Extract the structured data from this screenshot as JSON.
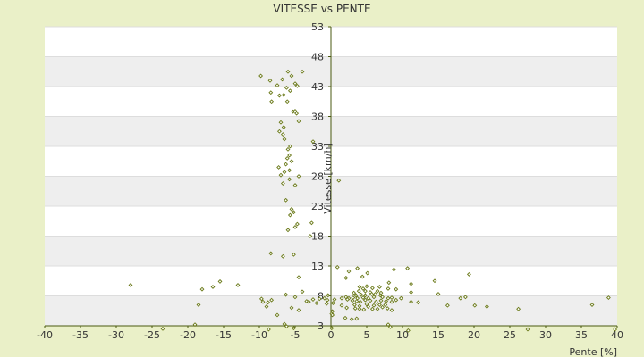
{
  "chart_data": {
    "type": "scatter",
    "title": "VITESSE vs PENTE",
    "xlabel": "Pente [%]",
    "ylabel": "Vitesse [km/h]",
    "xlim": [
      -40,
      40
    ],
    "ylim": [
      3,
      53
    ],
    "x_ticks": [
      "-40",
      "-35",
      "-30",
      "-25",
      "-20",
      "-15",
      "-10",
      "-5",
      "0",
      "5",
      "10",
      "15",
      "20",
      "25",
      "30",
      "35",
      "40"
    ],
    "y_ticks": [
      "3",
      "8",
      "13",
      "18",
      "23",
      "28",
      "33",
      "38",
      "43",
      "48",
      "53"
    ],
    "grid": true,
    "alternating_bands": true,
    "colors": {
      "page_background": "#eaf0c8",
      "plot_background": "#ffffff",
      "band": "#eeeeee",
      "axis": "#4a5a10",
      "marker": "#6b7a1a"
    },
    "marker": "diamond",
    "series": [
      {
        "points": [
          [
            -9.8,
            44.8
          ],
          [
            -6,
            45.5
          ],
          [
            -4,
            45.5
          ],
          [
            -8.5,
            44
          ],
          [
            -6.8,
            44.2
          ],
          [
            -5.5,
            44.8
          ],
          [
            -7.5,
            43.2
          ],
          [
            -5,
            43.5
          ],
          [
            -4.7,
            43.1
          ],
          [
            -6.2,
            42.8
          ],
          [
            -5.7,
            42.3
          ],
          [
            -8.4,
            42
          ],
          [
            -7.2,
            41.5
          ],
          [
            -6.6,
            41.6
          ],
          [
            -6.1,
            40.5
          ],
          [
            -8.3,
            40.5
          ],
          [
            -5.3,
            38.8
          ],
          [
            -4.8,
            38.5
          ],
          [
            -5,
            38.9
          ],
          [
            -4.5,
            37.2
          ],
          [
            -7,
            37
          ],
          [
            -6.6,
            36.2
          ],
          [
            -7.2,
            35.5
          ],
          [
            -6.7,
            35
          ],
          [
            -6.5,
            34.2
          ],
          [
            -2.5,
            33.8
          ],
          [
            -5.7,
            33
          ],
          [
            -6,
            32.5
          ],
          [
            -5.8,
            31.5
          ],
          [
            -6.1,
            31
          ],
          [
            -5.5,
            30.5
          ],
          [
            -6.3,
            30
          ],
          [
            -7.3,
            29.5
          ],
          [
            -5.8,
            29
          ],
          [
            -6.5,
            28.7
          ],
          [
            -7,
            28.2
          ],
          [
            -4.5,
            28
          ],
          [
            -5.8,
            27.5
          ],
          [
            -6.7,
            26.8
          ],
          [
            -5,
            26.5
          ],
          [
            1.1,
            27.3
          ],
          [
            -6.3,
            24
          ],
          [
            -5.5,
            22.5
          ],
          [
            -5.2,
            22
          ],
          [
            -5.7,
            21.5
          ],
          [
            -2.7,
            20.2
          ],
          [
            -4.7,
            20
          ],
          [
            -5,
            19.5
          ],
          [
            -6,
            19
          ],
          [
            -2.9,
            18
          ],
          [
            -8.4,
            15.1
          ],
          [
            -5.2,
            14.9
          ],
          [
            -6.7,
            14.6
          ],
          [
            0.9,
            12.8
          ],
          [
            3.7,
            12.6
          ],
          [
            8.8,
            12.4
          ],
          [
            10.7,
            12.6
          ],
          [
            2.5,
            12.1
          ],
          [
            5.1,
            11.8
          ],
          [
            19.3,
            11.6
          ],
          [
            -4.5,
            11.1
          ],
          [
            2.1,
            11
          ],
          [
            4.4,
            11.2
          ],
          [
            8.1,
            10.2
          ],
          [
            11.2,
            10
          ],
          [
            14.5,
            10.5
          ],
          [
            -28,
            9.8
          ],
          [
            -15.5,
            10.4
          ],
          [
            -13,
            9.8
          ],
          [
            -16.5,
            9.5
          ],
          [
            -18,
            9.1
          ],
          [
            4,
            9.5
          ],
          [
            5,
            9.6
          ],
          [
            4.5,
            9.2
          ],
          [
            5.8,
            9.3
          ],
          [
            6.8,
            9.5
          ],
          [
            8,
            9.2
          ],
          [
            9.1,
            9.1
          ],
          [
            -4,
            8.7
          ],
          [
            -6.3,
            8.2
          ],
          [
            3.2,
            8.5
          ],
          [
            3.9,
            8.8
          ],
          [
            4.8,
            8.8
          ],
          [
            5.5,
            8.6
          ],
          [
            6.5,
            8.8
          ],
          [
            7,
            8.5
          ],
          [
            3.5,
            8.1
          ],
          [
            4.2,
            8.2
          ],
          [
            4.8,
            8.1
          ],
          [
            5.7,
            8.3
          ],
          [
            6.2,
            8.3
          ],
          [
            6.9,
            8.1
          ],
          [
            11.2,
            8.6
          ],
          [
            15,
            8.3
          ],
          [
            -0.4,
            8.1
          ],
          [
            2.1,
            7.8
          ],
          [
            2.5,
            7.6
          ],
          [
            3.1,
            7.7
          ],
          [
            3.7,
            7.6
          ],
          [
            4.5,
            7.7
          ],
          [
            5.2,
            7.6
          ],
          [
            6,
            7.8
          ],
          [
            7.2,
            7.8
          ],
          [
            8,
            7.6
          ],
          [
            8.5,
            7.7
          ],
          [
            9.8,
            7.6
          ],
          [
            18.1,
            7.6
          ],
          [
            18.8,
            7.8
          ],
          [
            -9.7,
            7.5
          ],
          [
            -8.3,
            7.3
          ],
          [
            -5,
            7.8
          ],
          [
            -2.5,
            7.4
          ],
          [
            -1.6,
            7.5
          ],
          [
            -0.9,
            7.6
          ],
          [
            -0.5,
            7.3
          ],
          [
            0.5,
            7.4
          ],
          [
            1.5,
            7.6
          ],
          [
            2.3,
            7.4
          ],
          [
            3,
            7.2
          ],
          [
            3.6,
            7.1
          ],
          [
            4.1,
            7
          ],
          [
            4.8,
            7.3
          ],
          [
            5.5,
            7.2
          ],
          [
            6.3,
            7
          ],
          [
            7,
            7.2
          ],
          [
            7.7,
            7.1
          ],
          [
            8.5,
            7
          ],
          [
            9.1,
            7.3
          ],
          [
            11.2,
            7
          ],
          [
            12.2,
            6.9
          ],
          [
            38.8,
            7.7
          ],
          [
            -9.5,
            7
          ],
          [
            -8.8,
            6.9
          ],
          [
            -3.4,
            7.1
          ],
          [
            -3.1,
            7
          ],
          [
            -2,
            6.8
          ],
          [
            -0.6,
            6.7
          ],
          [
            0.3,
            6.8
          ],
          [
            1.5,
            6.4
          ],
          [
            3.3,
            6.5
          ],
          [
            4,
            6.3
          ],
          [
            5,
            6.6
          ],
          [
            6,
            6.4
          ],
          [
            6.8,
            6.5
          ],
          [
            7.6,
            6.5
          ],
          [
            16.3,
            6.4
          ],
          [
            20.1,
            6.4
          ],
          [
            21.8,
            6.2
          ],
          [
            36.5,
            6.5
          ],
          [
            -18.5,
            6.5
          ],
          [
            -9,
            6.2
          ],
          [
            -5.5,
            6
          ],
          [
            2.2,
            6
          ],
          [
            3.4,
            5.9
          ],
          [
            4,
            5.8
          ],
          [
            4.6,
            5.7
          ],
          [
            5.2,
            6.2
          ],
          [
            5.8,
            5.8
          ],
          [
            6.5,
            5.8
          ],
          [
            7.2,
            6.1
          ],
          [
            7.9,
            5.9
          ],
          [
            8.5,
            5.6
          ],
          [
            26.2,
            5.8
          ],
          [
            -4.5,
            5.6
          ],
          [
            0.2,
            5.4
          ],
          [
            0.1,
            5
          ],
          [
            0.2,
            4.8
          ],
          [
            -7.5,
            4.8
          ],
          [
            2,
            4.3
          ],
          [
            2.9,
            4.1
          ],
          [
            3.6,
            4.2
          ],
          [
            -6.5,
            3.3
          ],
          [
            -19,
            3.2
          ],
          [
            -6.2,
            2.9
          ],
          [
            -5.2,
            2.6
          ],
          [
            -8.7,
            2.4
          ],
          [
            -23.5,
            2.5
          ],
          [
            8,
            3.2
          ],
          [
            8.3,
            2.8
          ],
          [
            0.1,
            2.6
          ],
          [
            10.8,
            2.2
          ],
          [
            27.5,
            2.4
          ],
          [
            39.7,
            2.4
          ]
        ]
      }
    ]
  }
}
